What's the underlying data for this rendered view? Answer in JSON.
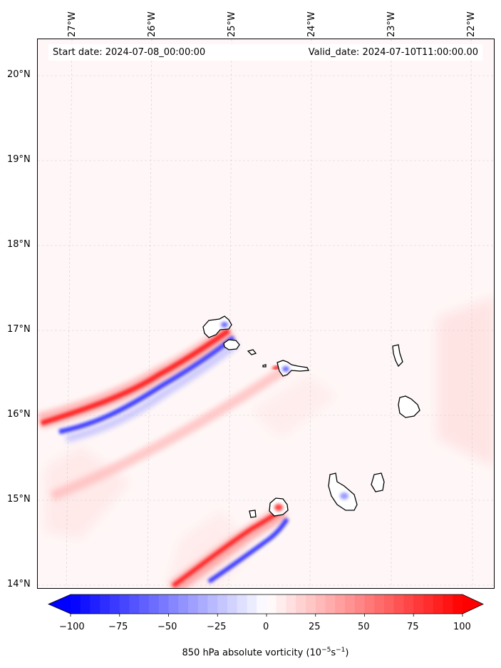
{
  "header": {
    "start_date": "Start date: 2024-07-08_00:00:00",
    "valid_date": "Valid_date: 2024-07-10T11:00:00.00"
  },
  "axes": {
    "longitude_labels": [
      "27°W",
      "26°W",
      "25°W",
      "24°W",
      "23°W",
      "22°W"
    ],
    "latitude_labels": [
      "20°N",
      "19°N",
      "18°N",
      "17°N",
      "16°N",
      "15°N",
      "14°N"
    ]
  },
  "colorbar": {
    "title_prefix": "850 hPa absolute vorticity (10",
    "title_exp1": "−5",
    "title_mid": "s",
    "title_exp2": "−1",
    "title_suffix": ")",
    "tick_labels": [
      "−100",
      "−75",
      "−50",
      "−25",
      "0",
      "25",
      "50",
      "75",
      "100"
    ],
    "min": -100,
    "max": 100,
    "colors": {
      "negative": "#0000ff",
      "zero": "#ffffff",
      "positive": "#ff0000"
    }
  },
  "map": {
    "land_outline_color": "#000000",
    "gridline_color": "#cccccc",
    "background_tint": "#fff7f7"
  }
}
